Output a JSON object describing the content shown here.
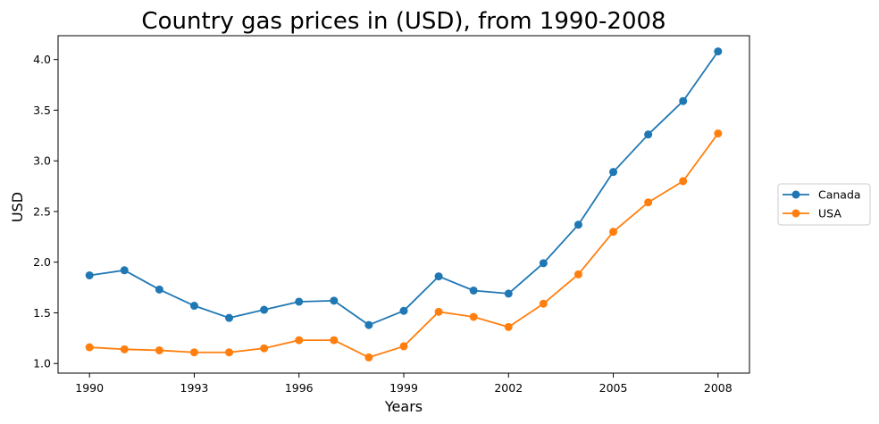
{
  "chart_data": {
    "type": "line",
    "title": "Country gas prices in (USD), from 1990-2008",
    "xlabel": "Years",
    "ylabel": "USD",
    "x": [
      1990,
      1991,
      1992,
      1993,
      1994,
      1995,
      1996,
      1997,
      1998,
      1999,
      2000,
      2001,
      2002,
      2003,
      2004,
      2005,
      2006,
      2007,
      2008
    ],
    "xticks": [
      1990,
      1993,
      1996,
      1999,
      2002,
      2005,
      2008
    ],
    "xlim": [
      1989.1,
      2008.9
    ],
    "yticks": [
      "1.0",
      "1.5",
      "2.0",
      "2.5",
      "3.0",
      "3.5",
      "4.0"
    ],
    "ylim": [
      0.905,
      4.235
    ],
    "grid": false,
    "legend_position": "right",
    "series": [
      {
        "name": "Canada",
        "color": "#1f77b4",
        "values": [
          1.87,
          1.92,
          1.73,
          1.57,
          1.45,
          1.53,
          1.61,
          1.62,
          1.38,
          1.52,
          1.86,
          1.72,
          1.69,
          1.99,
          2.37,
          2.89,
          3.26,
          3.59,
          4.08
        ]
      },
      {
        "name": "USA",
        "color": "#ff7f0e",
        "values": [
          1.16,
          1.14,
          1.13,
          1.11,
          1.11,
          1.15,
          1.23,
          1.23,
          1.06,
          1.17,
          1.51,
          1.46,
          1.36,
          1.59,
          1.88,
          2.3,
          2.59,
          2.8,
          3.27
        ]
      }
    ]
  }
}
